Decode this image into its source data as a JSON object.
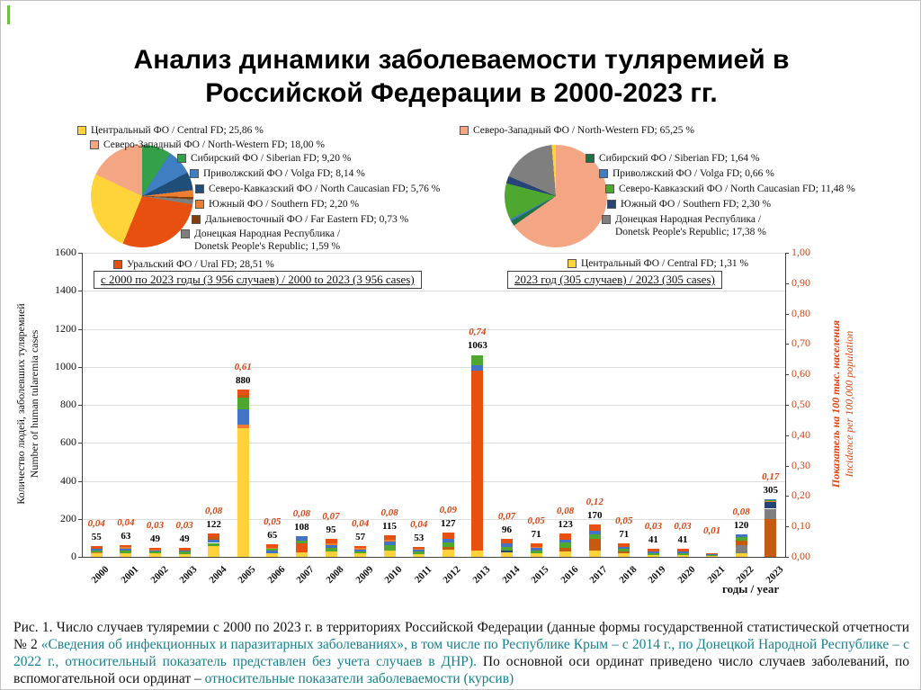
{
  "slide": {
    "title": "Анализ динамики заболеваемости туляремией в Российской Федерации в 2000-2023 гг.",
    "accent_color": "#6FBE44"
  },
  "colors": {
    "incidence": "#D6430F",
    "caption_teal": "#15808C",
    "grid": "#DCDCDC",
    "axis": "#404040",
    "text": "#111111"
  },
  "legend_left": {
    "items": [
      {
        "key": "central",
        "label": "Центральный ФО / Central FD; 25,86 %",
        "color": "#FFD33A"
      },
      {
        "key": "north-western",
        "label": "Северо-Западный ФО / North-Western FD; 18,00 %",
        "color": "#F4A583"
      },
      {
        "key": "siberian",
        "label": "Сибирский ФО / Siberian FD; 9,20 %",
        "color": "#35A04A"
      },
      {
        "key": "volga",
        "label": "Приволжский ФО / Volga FD; 8,14 %",
        "color": "#3E7EC1"
      },
      {
        "key": "north-caucasian",
        "label": "Северо-Кавказский ФО / North Caucasian FD; 5,76 %",
        "color": "#1F4E79"
      },
      {
        "key": "southern",
        "label": "Южный ФО / Southern FD; 2,20 %",
        "color": "#ED7D31"
      },
      {
        "key": "far-eastern",
        "label": "Дальневосточный ФО / Far Eastern FD; 0,73 %",
        "color": "#843C0C"
      },
      {
        "key": "donetsk",
        "label": "Донецкая Народная Республика / Donetsk People's Republic; 1,59 %",
        "color": "#7F7F7F"
      },
      {
        "key": "ural",
        "label": "Уральский ФО / Ural FD; 28,51 %",
        "color": "#E8500F"
      }
    ]
  },
  "legend_right": {
    "items": [
      {
        "key": "north-western",
        "label": "Северо-Западный ФО / North-Western FD; 65,25 %",
        "color": "#F4A583"
      },
      {
        "key": "siberian",
        "label": "Сибирский ФО / Siberian FD; 1,64 %",
        "color": "#1E7145"
      },
      {
        "key": "volga",
        "label": "Приволжский ФО / Volga FD; 0,66 %",
        "color": "#3E7EC1"
      },
      {
        "key": "north-caucasian",
        "label": "Северо-Кавказский ФО / North Caucasian FD; 11,48 %",
        "color": "#4EA72E"
      },
      {
        "key": "southern",
        "label": "Южный ФО / Southern FD; 2,30 %",
        "color": "#264478"
      },
      {
        "key": "donetsk",
        "label": "Донецкая Народная Республика / Donetsk People's Republic; 17,38 %",
        "color": "#7F7F7F"
      },
      {
        "key": "central",
        "label": "Центральный ФО / Central FD; 1,31 %",
        "color": "#FFD33A"
      }
    ]
  },
  "chart_data": [
    {
      "type": "pie",
      "name": "pie-overall-2000-2023",
      "title": "с 2000 по 2023 годы (3 956 случаев) / 2000 to 2023 (3 956 cases)",
      "slices": [
        {
          "label": "Сибирский ФО / Siberian FD",
          "value": 9.2,
          "color": "#35A04A"
        },
        {
          "label": "Приволжский ФО / Volga FD",
          "value": 8.14,
          "color": "#3E7EC1"
        },
        {
          "label": "Северо-Кавказский ФО / North Caucasian FD",
          "value": 5.76,
          "color": "#1F4E79"
        },
        {
          "label": "Южный ФО / Southern FD",
          "value": 2.2,
          "color": "#ED7D31"
        },
        {
          "label": "Дальневосточный ФО / Far Eastern FD",
          "value": 0.73,
          "color": "#843C0C"
        },
        {
          "label": "Донецкая Народная Республика / Donetsk People's Republic",
          "value": 1.59,
          "color": "#7F7F7F"
        },
        {
          "label": "Уральский ФО / Ural FD",
          "value": 28.51,
          "color": "#E8500F"
        },
        {
          "label": "Центральный ФО / Central FD",
          "value": 25.86,
          "color": "#FFD33A"
        },
        {
          "label": "Северо-Западный ФО / North-Western FD",
          "value": 18.0,
          "color": "#F4A583"
        }
      ]
    },
    {
      "type": "pie",
      "name": "pie-2023",
      "title": "2023 год (305 случаев) / 2023 (305 cases)",
      "slices": [
        {
          "label": "Северо-Западный ФО / North-Western FD",
          "value": 65.25,
          "color": "#F4A583"
        },
        {
          "label": "Сибирский ФО / Siberian FD",
          "value": 1.64,
          "color": "#1E7145"
        },
        {
          "label": "Приволжский ФО / Volga FD",
          "value": 0.66,
          "color": "#3E7EC1"
        },
        {
          "label": "Северо-Кавказский ФО / North Caucasian FD",
          "value": 11.48,
          "color": "#4EA72E"
        },
        {
          "label": "Южный ФО / Southern FD",
          "value": 2.3,
          "color": "#264478"
        },
        {
          "label": "Донецкая Народная Республика / Donetsk People's Republic",
          "value": 17.38,
          "color": "#7F7F7F"
        },
        {
          "label": "Центральный ФО / Central FD",
          "value": 1.31,
          "color": "#FFD33A"
        }
      ]
    },
    {
      "type": "bar",
      "name": "tularemia-cases-by-year",
      "categories": [
        "2000",
        "2001",
        "2002",
        "2003",
        "2004",
        "2005",
        "2006",
        "2007",
        "2008",
        "2009",
        "2010",
        "2011",
        "2012",
        "2013",
        "2014",
        "2015",
        "2016",
        "2017",
        "2018",
        "2019",
        "2020",
        "2021",
        "2022",
        "2023"
      ],
      "values": [
        55,
        63,
        49,
        49,
        122,
        880,
        65,
        108,
        95,
        57,
        115,
        53,
        127,
        1063,
        96,
        71,
        123,
        170,
        71,
        41,
        41,
        17,
        120,
        305
      ],
      "count_labels": [
        "55",
        "63",
        "49",
        "49",
        "122",
        "880",
        "65",
        "108",
        "95",
        "57",
        "115",
        "53",
        "127",
        "1063",
        "96",
        "71",
        "123",
        "170",
        "71",
        "41",
        "41",
        "",
        "120",
        "305"
      ],
      "incidence_labels": [
        "0,04",
        "0,04",
        "0,03",
        "0,03",
        "0,08",
        "0,61",
        "0,05",
        "0,08",
        "0,07",
        "0,04",
        "0,08",
        "0,04",
        "0,09",
        "0,74",
        "0,07",
        "0,05",
        "0,08",
        "0,12",
        "0,05",
        "0,03",
        "0,03",
        "0,01",
        "0,08",
        "0,17"
      ],
      "ylim": [
        0,
        1600
      ],
      "y2lim": [
        0,
        1
      ],
      "yticks": [
        "0",
        "200",
        "400",
        "600",
        "800",
        "1000",
        "1200",
        "1400",
        "1600"
      ],
      "y2ticks": [
        "0,00",
        "0,10",
        "0,20",
        "0,30",
        "0,40",
        "0,50",
        "0,60",
        "0,70",
        "0,80",
        "0,90",
        "1,00"
      ],
      "ylabel_left": [
        "Количество людей, заболевших туляремией",
        "Number of human tularemia cases"
      ],
      "ylabel_right": [
        "Показатель на 100 тыс. населения",
        "Incidence per 100,000 population"
      ],
      "xlabel": "годы / year",
      "period_labels": [
        "с 2000 по 2023 годы (3 956 случаев) / 2000 to 2023 (3 956 cases)",
        "2023 год (305 случаев) / 2023 (305 cases)"
      ],
      "palette": {
        "c": "#FFD23B",
        "n": "#C55A11",
        "s": "#4EA72E",
        "v": "#4472C4",
        "k": "#264478",
        "u": "#ED7D31",
        "f": "#843C0C",
        "d": "#7F7F7F",
        "r": "#E8500F"
      },
      "stacks": [
        [
          [
            "c",
            0.3
          ],
          [
            "u",
            0.1
          ],
          [
            "s",
            0.2
          ],
          [
            "v",
            0.2
          ],
          [
            "r",
            0.2
          ]
        ],
        [
          [
            "c",
            0.3
          ],
          [
            "s",
            0.2
          ],
          [
            "v",
            0.2
          ],
          [
            "u",
            0.1
          ],
          [
            "r",
            0.2
          ]
        ],
        [
          [
            "c",
            0.35
          ],
          [
            "s",
            0.2
          ],
          [
            "v",
            0.15
          ],
          [
            "u",
            0.1
          ],
          [
            "r",
            0.2
          ]
        ],
        [
          [
            "c",
            0.3
          ],
          [
            "s",
            0.25
          ],
          [
            "v",
            0.15
          ],
          [
            "r",
            0.3
          ]
        ],
        [
          [
            "c",
            0.45
          ],
          [
            "s",
            0.15
          ],
          [
            "v",
            0.15
          ],
          [
            "n",
            0.1
          ],
          [
            "r",
            0.15
          ]
        ],
        [
          [
            "c",
            0.77
          ],
          [
            "u",
            0.02
          ],
          [
            "v",
            0.09
          ],
          [
            "s",
            0.07
          ],
          [
            "n",
            0.02
          ],
          [
            "r",
            0.03
          ]
        ],
        [
          [
            "c",
            0.3
          ],
          [
            "v",
            0.2
          ],
          [
            "s",
            0.15
          ],
          [
            "u",
            0.1
          ],
          [
            "r",
            0.25
          ]
        ],
        [
          [
            "c",
            0.2
          ],
          [
            "r",
            0.45
          ],
          [
            "s",
            0.15
          ],
          [
            "v",
            0.2
          ]
        ],
        [
          [
            "c",
            0.3
          ],
          [
            "s",
            0.2
          ],
          [
            "v",
            0.15
          ],
          [
            "u",
            0.1
          ],
          [
            "r",
            0.25
          ]
        ],
        [
          [
            "c",
            0.3
          ],
          [
            "s",
            0.2
          ],
          [
            "v",
            0.2
          ],
          [
            "u",
            0.1
          ],
          [
            "r",
            0.2
          ]
        ],
        [
          [
            "c",
            0.3
          ],
          [
            "s",
            0.25
          ],
          [
            "v",
            0.15
          ],
          [
            "u",
            0.1
          ],
          [
            "r",
            0.2
          ]
        ],
        [
          [
            "c",
            0.3
          ],
          [
            "s",
            0.2
          ],
          [
            "v",
            0.2
          ],
          [
            "u",
            0.1
          ],
          [
            "r",
            0.2
          ]
        ],
        [
          [
            "c",
            0.3
          ],
          [
            "n",
            0.1
          ],
          [
            "s",
            0.2
          ],
          [
            "v",
            0.15
          ],
          [
            "r",
            0.25
          ]
        ],
        [
          [
            "c",
            0.03
          ],
          [
            "r",
            0.89
          ],
          [
            "v",
            0.03
          ],
          [
            "s",
            0.05
          ]
        ],
        [
          [
            "c",
            0.25
          ],
          [
            "k",
            0.1
          ],
          [
            "s",
            0.2
          ],
          [
            "v",
            0.2
          ],
          [
            "r",
            0.25
          ]
        ],
        [
          [
            "c",
            0.25
          ],
          [
            "s",
            0.2
          ],
          [
            "v",
            0.2
          ],
          [
            "u",
            0.1
          ],
          [
            "r",
            0.25
          ]
        ],
        [
          [
            "c",
            0.25
          ],
          [
            "n",
            0.15
          ],
          [
            "s",
            0.2
          ],
          [
            "v",
            0.15
          ],
          [
            "r",
            0.25
          ]
        ],
        [
          [
            "c",
            0.2
          ],
          [
            "n",
            0.35
          ],
          [
            "s",
            0.15
          ],
          [
            "v",
            0.1
          ],
          [
            "r",
            0.2
          ]
        ],
        [
          [
            "c",
            0.25
          ],
          [
            "n",
            0.15
          ],
          [
            "s",
            0.2
          ],
          [
            "v",
            0.15
          ],
          [
            "r",
            0.25
          ]
        ],
        [
          [
            "c",
            0.25
          ],
          [
            "s",
            0.25
          ],
          [
            "v",
            0.2
          ],
          [
            "r",
            0.3
          ]
        ],
        [
          [
            "c",
            0.25
          ],
          [
            "s",
            0.25
          ],
          [
            "v",
            0.2
          ],
          [
            "r",
            0.3
          ]
        ],
        [
          [
            "c",
            0.3
          ],
          [
            "s",
            0.3
          ],
          [
            "v",
            0.2
          ],
          [
            "r",
            0.2
          ]
        ],
        [
          [
            "c",
            0.15
          ],
          [
            "d",
            0.35
          ],
          [
            "n",
            0.2
          ],
          [
            "s",
            0.15
          ],
          [
            "v",
            0.15
          ]
        ],
        [
          [
            "n",
            0.65
          ],
          [
            "d",
            0.18
          ],
          [
            "k",
            0.11
          ],
          [
            "u",
            0.02
          ],
          [
            "s",
            0.02
          ],
          [
            "v",
            0.02
          ]
        ]
      ]
    }
  ],
  "caption": {
    "segments": [
      {
        "text": "Рис. 1. Число случаев туляремии с 2000 по 2023 г. в территориях Российской Федерации (данные формы государственной статистической отчетности № 2 ",
        "teal": false
      },
      {
        "text": "«Сведения об инфекционных и паразитарных заболеваниях», в том числе по Республике Крым – с 2014 г., по Донецкой Народной Республике – с 2022 г., относительный показатель представлен без учета случаев в ДНР).",
        "teal": true
      },
      {
        "text": " По основной оси ординат приведено число случаев заболеваний, по вспомогательной оси ординат – ",
        "teal": false
      },
      {
        "text": "относительные показатели заболеваемости (курсив)",
        "teal": true
      }
    ]
  }
}
